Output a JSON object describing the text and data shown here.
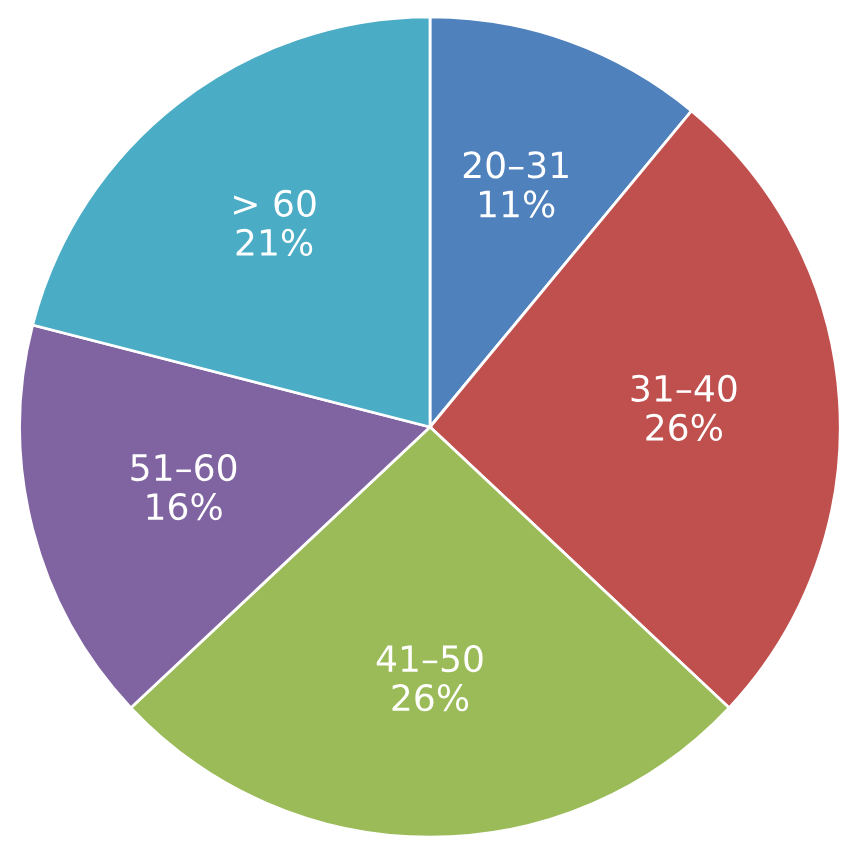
{
  "chart_data": {
    "type": "pie",
    "categories": [
      "20–31",
      "31–40",
      "41–50",
      "51–60",
      "> 60"
    ],
    "values": [
      11,
      26,
      26,
      16,
      21
    ],
    "value_labels": [
      "11%",
      "26%",
      "26%",
      "16%",
      "21%"
    ],
    "colors": [
      "#4f81bd",
      "#c0504d",
      "#9bbb59",
      "#8064a2",
      "#4bacc6"
    ],
    "legend": false
  }
}
